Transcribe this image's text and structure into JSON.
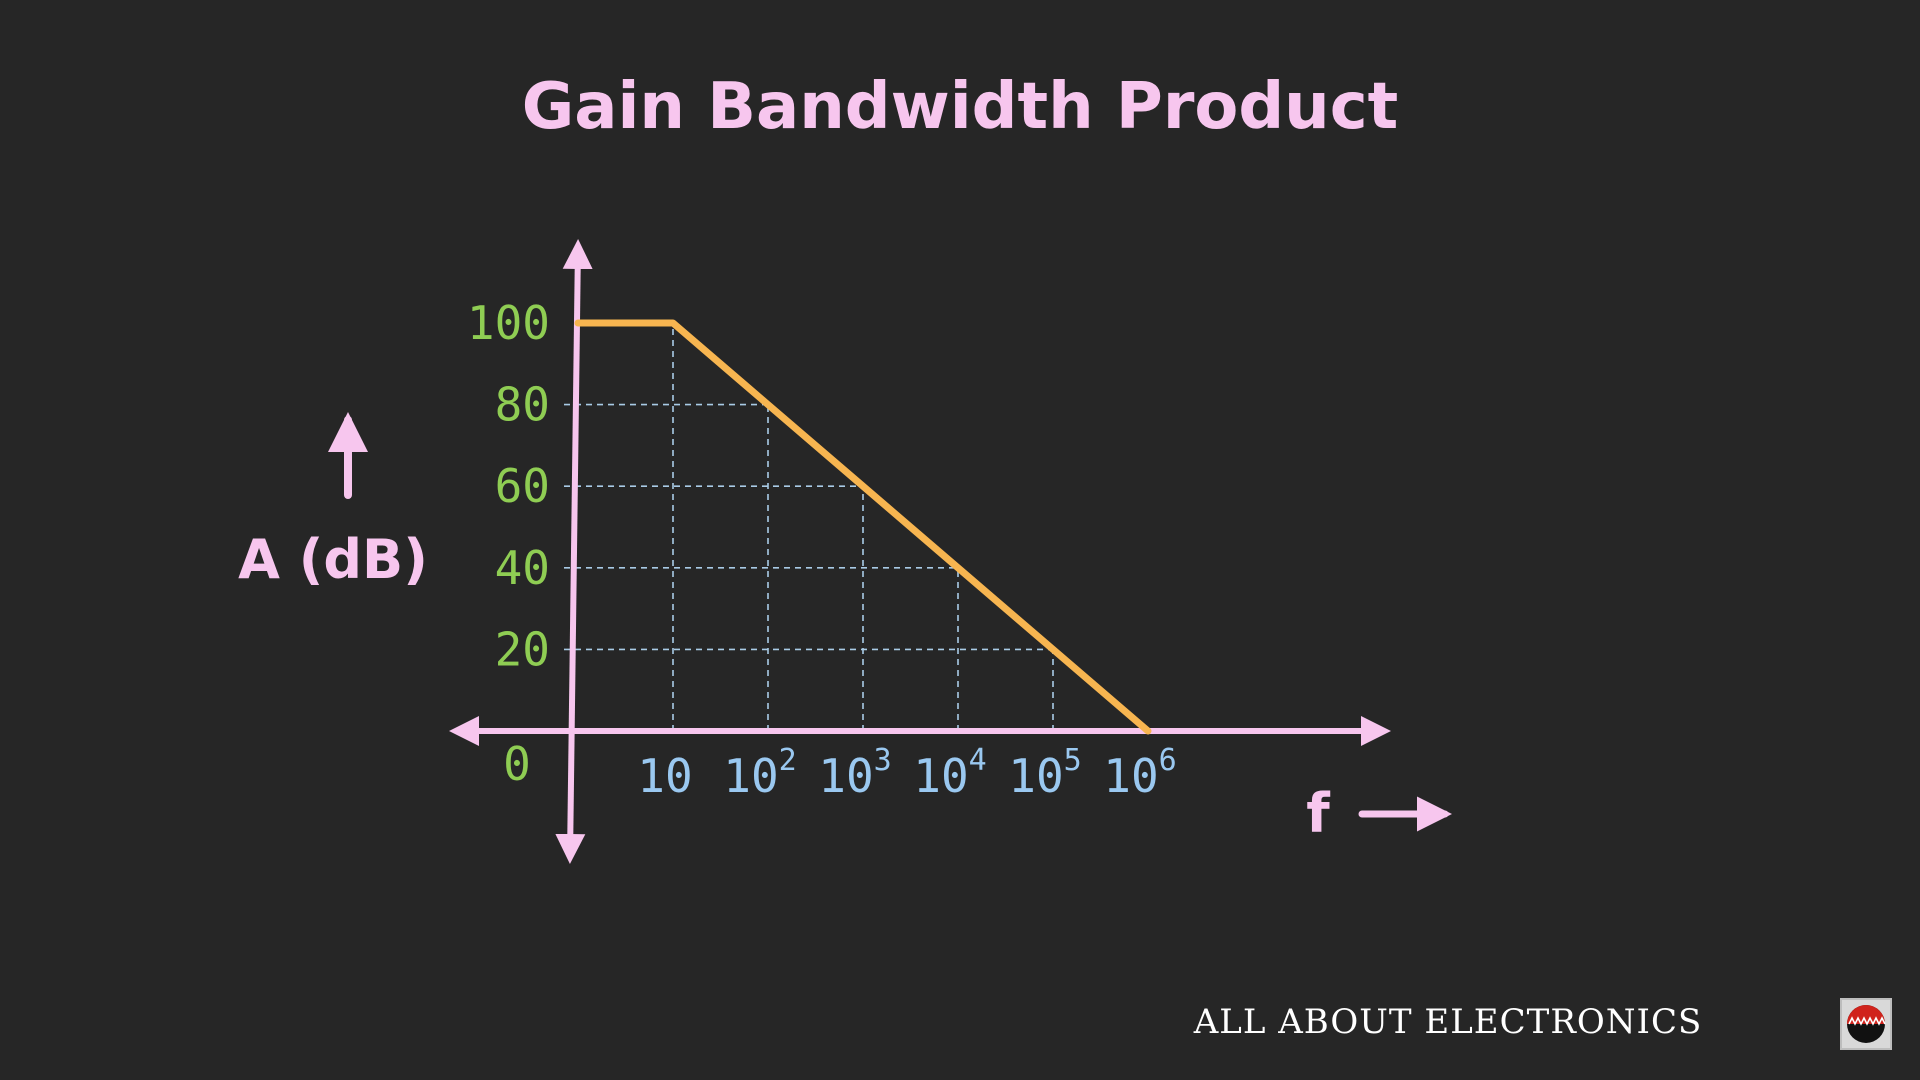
{
  "header": {
    "title": "Gain Bandwidth Product"
  },
  "footer": {
    "brand_text": "ALL ABOUT ELECTRONICS",
    "logo_icon": "sine-wave-logo-icon"
  },
  "colors": {
    "background": "#262626",
    "axis": "#f7c6ee",
    "curve": "#f7b550",
    "grid": "#a9cbe6",
    "ytick": "#8fcd53",
    "xtick": "#9ac8f0"
  },
  "chart_data": {
    "type": "line",
    "title": "Gain Bandwidth Product",
    "xlabel": "f",
    "ylabel": "A (dB)",
    "xscale": "log",
    "origin_label": "0",
    "yticks": [
      {
        "value": 20,
        "label": "20"
      },
      {
        "value": 40,
        "label": "40"
      },
      {
        "value": 60,
        "label": "60"
      },
      {
        "value": 80,
        "label": "80"
      },
      {
        "value": 100,
        "label": "100"
      }
    ],
    "xticks": [
      {
        "value": 10,
        "base": "10",
        "exp": ""
      },
      {
        "value": 100,
        "base": "10",
        "exp": "2"
      },
      {
        "value": 1000,
        "base": "10",
        "exp": "3"
      },
      {
        "value": 10000,
        "base": "10",
        "exp": "4"
      },
      {
        "value": 100000,
        "base": "10",
        "exp": "5"
      },
      {
        "value": 1000000,
        "base": "10",
        "exp": "6"
      }
    ],
    "series": [
      {
        "points": [
          {
            "x": 1,
            "y": 100
          },
          {
            "x": 10,
            "y": 100
          },
          {
            "x": 100,
            "y": 80
          },
          {
            "x": 1000,
            "y": 60
          },
          {
            "x": 10000,
            "y": 40
          },
          {
            "x": 100000,
            "y": 20
          },
          {
            "x": 1000000,
            "y": 0
          }
        ]
      }
    ],
    "gridlines": "dashed guides at each decade and each 20 dB level",
    "legend": "none"
  }
}
